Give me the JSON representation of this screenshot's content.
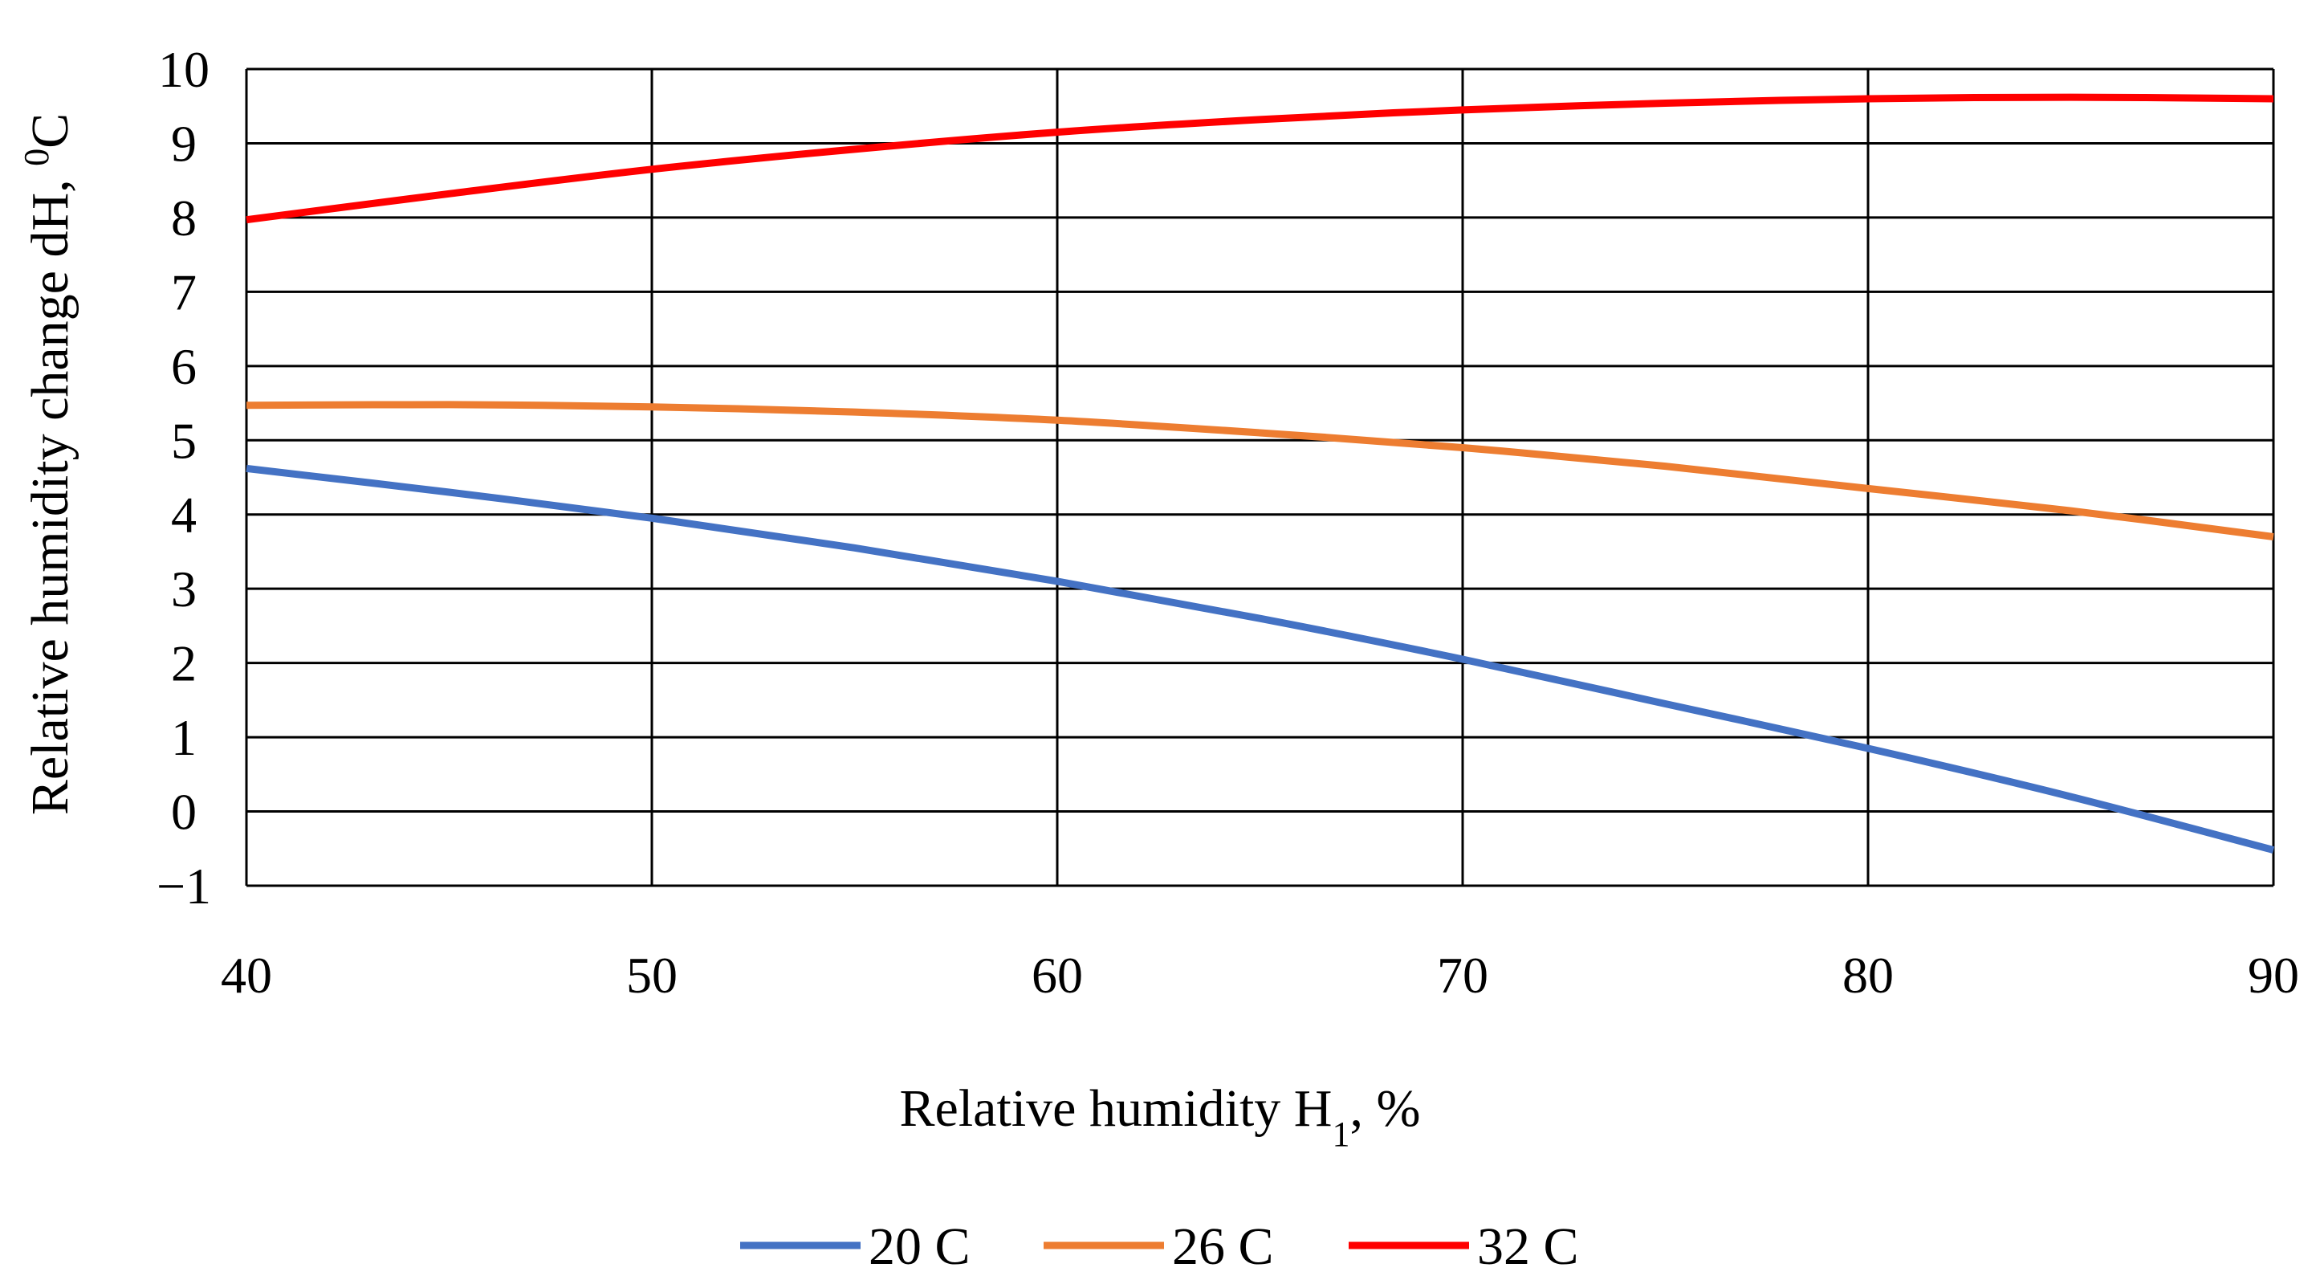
{
  "chart_data": {
    "type": "line",
    "title": "",
    "xlabel": "Relative humidity H",
    "xlabel_subscript": "1",
    "xlabel_suffix": ", %",
    "ylabel": "Relative humidity change dH, ",
    "ylabel_superscript": "0",
    "ylabel_suffix": "C",
    "xlim": [
      40,
      90
    ],
    "ylim": [
      -1,
      10
    ],
    "x_ticks": [
      40,
      50,
      60,
      70,
      80,
      90
    ],
    "y_ticks": [
      -1,
      0,
      1,
      2,
      3,
      4,
      5,
      6,
      7,
      8,
      9,
      10
    ],
    "y_tick_labels": [
      "−1",
      "0",
      "1",
      "2",
      "3",
      "4",
      "5",
      "6",
      "7",
      "8",
      "9",
      "10"
    ],
    "grid": true,
    "legend_position": "bottom-center",
    "x": [
      40,
      45,
      50,
      55,
      60,
      65,
      70,
      75,
      80,
      85,
      90
    ],
    "series": [
      {
        "name": "20 C",
        "color": "#4472C4",
        "values": [
          4.62,
          4.3,
          3.95,
          3.55,
          3.1,
          2.6,
          2.05,
          1.45,
          0.85,
          0.2,
          -0.52
        ]
      },
      {
        "name": "26 C",
        "color": "#ED7D31",
        "values": [
          5.47,
          5.48,
          5.45,
          5.38,
          5.27,
          5.1,
          4.9,
          4.65,
          4.35,
          4.05,
          3.7
        ]
      },
      {
        "name": "32 C",
        "color": "#FF0000",
        "values": [
          7.97,
          8.32,
          8.65,
          8.92,
          9.15,
          9.32,
          9.45,
          9.54,
          9.6,
          9.62,
          9.6
        ]
      }
    ]
  }
}
